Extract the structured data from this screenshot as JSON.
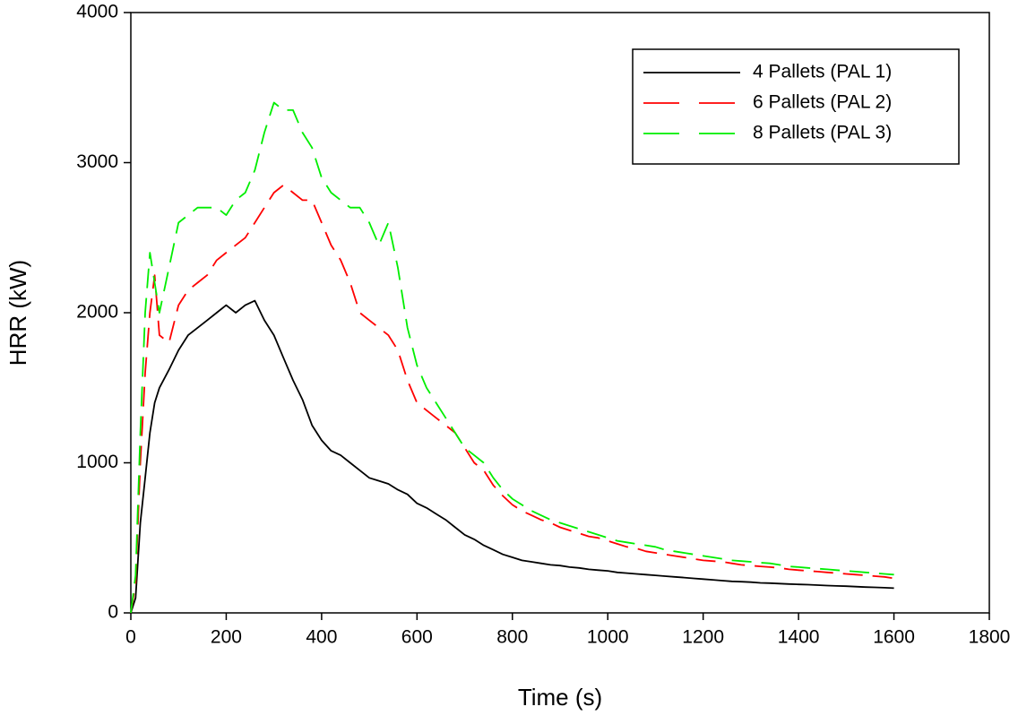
{
  "chart_data": {
    "type": "line",
    "xlabel": "Time (s)",
    "ylabel": "HRR (kW)",
    "xlim": [
      0,
      1800
    ],
    "xticks": [
      0,
      200,
      400,
      600,
      800,
      1000,
      1200,
      1400,
      1600,
      1800
    ],
    "ylim": [
      0,
      4000
    ],
    "yticks": [
      0,
      1000,
      2000,
      3000,
      4000
    ],
    "legend": "upper right",
    "x": [
      0,
      10,
      20,
      30,
      40,
      50,
      60,
      80,
      100,
      120,
      140,
      160,
      180,
      200,
      220,
      240,
      260,
      280,
      300,
      320,
      340,
      360,
      380,
      400,
      420,
      440,
      460,
      480,
      500,
      520,
      540,
      560,
      580,
      600,
      620,
      640,
      660,
      680,
      700,
      720,
      740,
      760,
      780,
      800,
      820,
      840,
      860,
      880,
      900,
      920,
      940,
      960,
      980,
      1000,
      1020,
      1040,
      1060,
      1080,
      1100,
      1120,
      1140,
      1160,
      1180,
      1200,
      1220,
      1240,
      1260,
      1280,
      1300,
      1320,
      1340,
      1360,
      1380,
      1400,
      1420,
      1440,
      1460,
      1480,
      1500,
      1520,
      1540,
      1560,
      1580,
      1600
    ],
    "series": [
      {
        "name": "4 Pallets (PAL 1)",
        "color": "#000000",
        "linestyle": "solid",
        "values": [
          0,
          100,
          600,
          900,
          1200,
          1400,
          1500,
          1620,
          1750,
          1850,
          1900,
          1950,
          2000,
          2050,
          2000,
          2050,
          2080,
          1950,
          1850,
          1700,
          1550,
          1420,
          1250,
          1150,
          1080,
          1050,
          1000,
          950,
          900,
          880,
          860,
          820,
          790,
          730,
          700,
          660,
          620,
          570,
          520,
          490,
          450,
          420,
          390,
          370,
          350,
          340,
          330,
          320,
          315,
          305,
          300,
          290,
          285,
          280,
          270,
          265,
          260,
          255,
          250,
          245,
          240,
          235,
          230,
          225,
          220,
          215,
          210,
          208,
          205,
          200,
          198,
          195,
          192,
          190,
          188,
          185,
          182,
          180,
          178,
          175,
          172,
          170,
          168,
          165
        ]
      },
      {
        "name": "6 Pallets (PAL 2)",
        "color": "#ff0000",
        "linestyle": "dashed",
        "values": [
          0,
          200,
          1000,
          1600,
          2000,
          2250,
          1850,
          1800,
          2050,
          2150,
          2200,
          2250,
          2350,
          2400,
          2450,
          2500,
          2600,
          2700,
          2800,
          2850,
          2800,
          2750,
          2750,
          2600,
          2450,
          2350,
          2200,
          2000,
          1950,
          1900,
          1850,
          1750,
          1550,
          1400,
          1350,
          1300,
          1250,
          1200,
          1100,
          1000,
          950,
          850,
          780,
          720,
          680,
          650,
          620,
          600,
          570,
          550,
          530,
          510,
          500,
          480,
          460,
          440,
          430,
          410,
          400,
          390,
          380,
          370,
          360,
          350,
          345,
          340,
          330,
          320,
          315,
          310,
          305,
          300,
          290,
          285,
          280,
          275,
          270,
          265,
          260,
          255,
          250,
          245,
          240,
          230
        ]
      },
      {
        "name": "8 Pallets (PAL 3)",
        "color": "#00ee00",
        "linestyle": "dashed",
        "values": [
          0,
          250,
          1200,
          2000,
          2400,
          2200,
          2000,
          2300,
          2600,
          2650,
          2700,
          2700,
          2700,
          2650,
          2750,
          2800,
          2950,
          3200,
          3400,
          3350,
          3350,
          3200,
          3100,
          2900,
          2800,
          2750,
          2700,
          2700,
          2600,
          2450,
          2600,
          2300,
          1900,
          1650,
          1500,
          1400,
          1300,
          1200,
          1100,
          1050,
          1000,
          900,
          820,
          760,
          720,
          680,
          650,
          620,
          600,
          580,
          560,
          540,
          520,
          500,
          480,
          470,
          460,
          450,
          440,
          420,
          410,
          400,
          390,
          380,
          370,
          360,
          350,
          345,
          340,
          335,
          330,
          320,
          310,
          305,
          300,
          295,
          290,
          285,
          280,
          275,
          270,
          265,
          260,
          255
        ]
      }
    ]
  }
}
